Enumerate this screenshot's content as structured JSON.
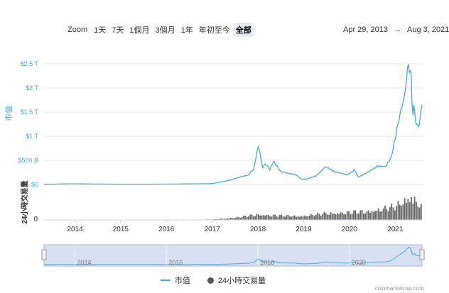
{
  "toolbar": {
    "zoom_label": "Zoom",
    "buttons": [
      "1天",
      "7天",
      "1個月",
      "3個月",
      "1年",
      "年初至今",
      "全部"
    ],
    "active": "全部"
  },
  "date_range": {
    "from": "Apr 29, 2013",
    "arrow": "→",
    "to": "Aug 3, 2021"
  },
  "legend": {
    "market_cap": "市值",
    "volume": "24小時交易量"
  },
  "credits": "coinmarketcap.com",
  "colors": {
    "market_cap_line": "#4aa8d8",
    "volume_bars": "#666666",
    "navigator_fill": "#c9d7ee"
  },
  "chart_data": {
    "type": "line",
    "ylabel": "市值",
    "ylabel_secondary": "24小時交易量",
    "y_ticks": [
      "$0",
      "$500 B",
      "$1 T",
      "$1.5 T",
      "$2 T",
      "$2.5 T"
    ],
    "y_tick_values": [
      0,
      500,
      1000,
      1500,
      2000,
      2500
    ],
    "y_unit": "billion USD",
    "ylim": [
      0,
      2600
    ],
    "volume_ticks": [
      "0"
    ],
    "x_ticks": [
      "2014",
      "2015",
      "2016",
      "2017",
      "2018",
      "2019",
      "2020",
      "2021"
    ],
    "xlim": [
      "2013-04-29",
      "2021-08-03"
    ],
    "navigator_ticks": [
      "2014",
      "2016",
      "2018",
      "2020"
    ],
    "series": [
      {
        "name": "市值",
        "x": [
          "2013-04-29",
          "2013-11-30",
          "2014-06-01",
          "2015-01-01",
          "2016-01-01",
          "2017-01-01",
          "2017-05-25",
          "2017-09-01",
          "2017-10-15",
          "2017-12-01",
          "2017-12-20",
          "2018-01-07",
          "2018-02-06",
          "2018-03-05",
          "2018-04-06",
          "2018-05-05",
          "2018-07-01",
          "2018-09-01",
          "2018-11-01",
          "2018-12-15",
          "2019-02-01",
          "2019-04-15",
          "2019-06-26",
          "2019-09-01",
          "2019-12-15",
          "2020-02-14",
          "2020-03-13",
          "2020-06-01",
          "2020-08-15",
          "2020-10-15",
          "2020-12-01",
          "2021-01-08",
          "2021-02-21",
          "2021-03-15",
          "2021-04-16",
          "2021-05-12",
          "2021-05-19",
          "2021-06-01",
          "2021-06-22",
          "2021-07-15",
          "2021-08-03"
        ],
        "values": [
          3,
          14,
          9,
          6,
          7,
          17,
          90,
          170,
          190,
          330,
          620,
          820,
          350,
          430,
          300,
          480,
          270,
          230,
          200,
          110,
          115,
          185,
          370,
          270,
          200,
          300,
          150,
          260,
          380,
          370,
          560,
          1050,
          1600,
          1800,
          2500,
          2200,
          1400,
          1600,
          1200,
          1250,
          1680
        ]
      },
      {
        "name": "24小時交易量",
        "x": [
          "2013-04-29",
          "2017-01-01",
          "2017-08-01",
          "2017-12-20",
          "2018-06-01",
          "2019-01-01",
          "2019-06-26",
          "2020-01-01",
          "2020-06-01",
          "2021-01-01",
          "2021-05-12",
          "2021-08-03"
        ],
        "values": [
          0,
          2,
          12,
          25,
          20,
          18,
          30,
          35,
          40,
          60,
          110,
          55
        ]
      }
    ]
  }
}
